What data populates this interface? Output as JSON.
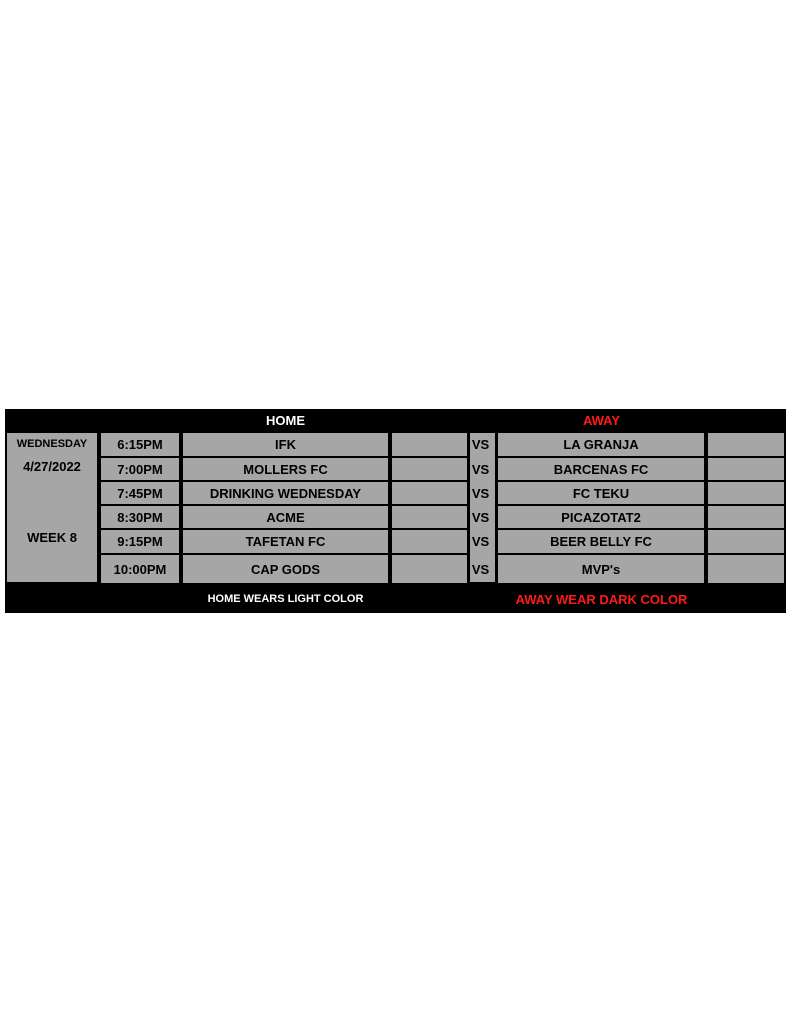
{
  "header": {
    "home": "HOME",
    "away": "AWAY"
  },
  "day": {
    "weekday": "WEDNESDAY",
    "date": "4/27/2022",
    "week": "WEEK 8"
  },
  "vs_label": "VS",
  "games": [
    {
      "time": "6:15PM",
      "home": "IFK",
      "away": "LA GRANJA"
    },
    {
      "time": "7:00PM",
      "home": "MOLLERS FC",
      "away": "BARCENAS FC"
    },
    {
      "time": "7:45PM",
      "home": "DRINKING WEDNESDAY",
      "away": "FC TEKU"
    },
    {
      "time": "8:30PM",
      "home": "ACME",
      "away": "PICAZOTAT2"
    },
    {
      "time": "9:15PM",
      "home": "TAFETAN FC",
      "away": "BEER BELLY FC"
    },
    {
      "time": "10:00PM",
      "home": "CAP GODS",
      "away": "MVP's"
    }
  ],
  "footer": {
    "home_note": "HOME WEARS LIGHT COLOR",
    "away_note": "AWAY WEAR DARK COLOR"
  },
  "colors": {
    "cell": "#a6a6a6",
    "border": "#000000",
    "away_text": "#ff1a1a"
  }
}
